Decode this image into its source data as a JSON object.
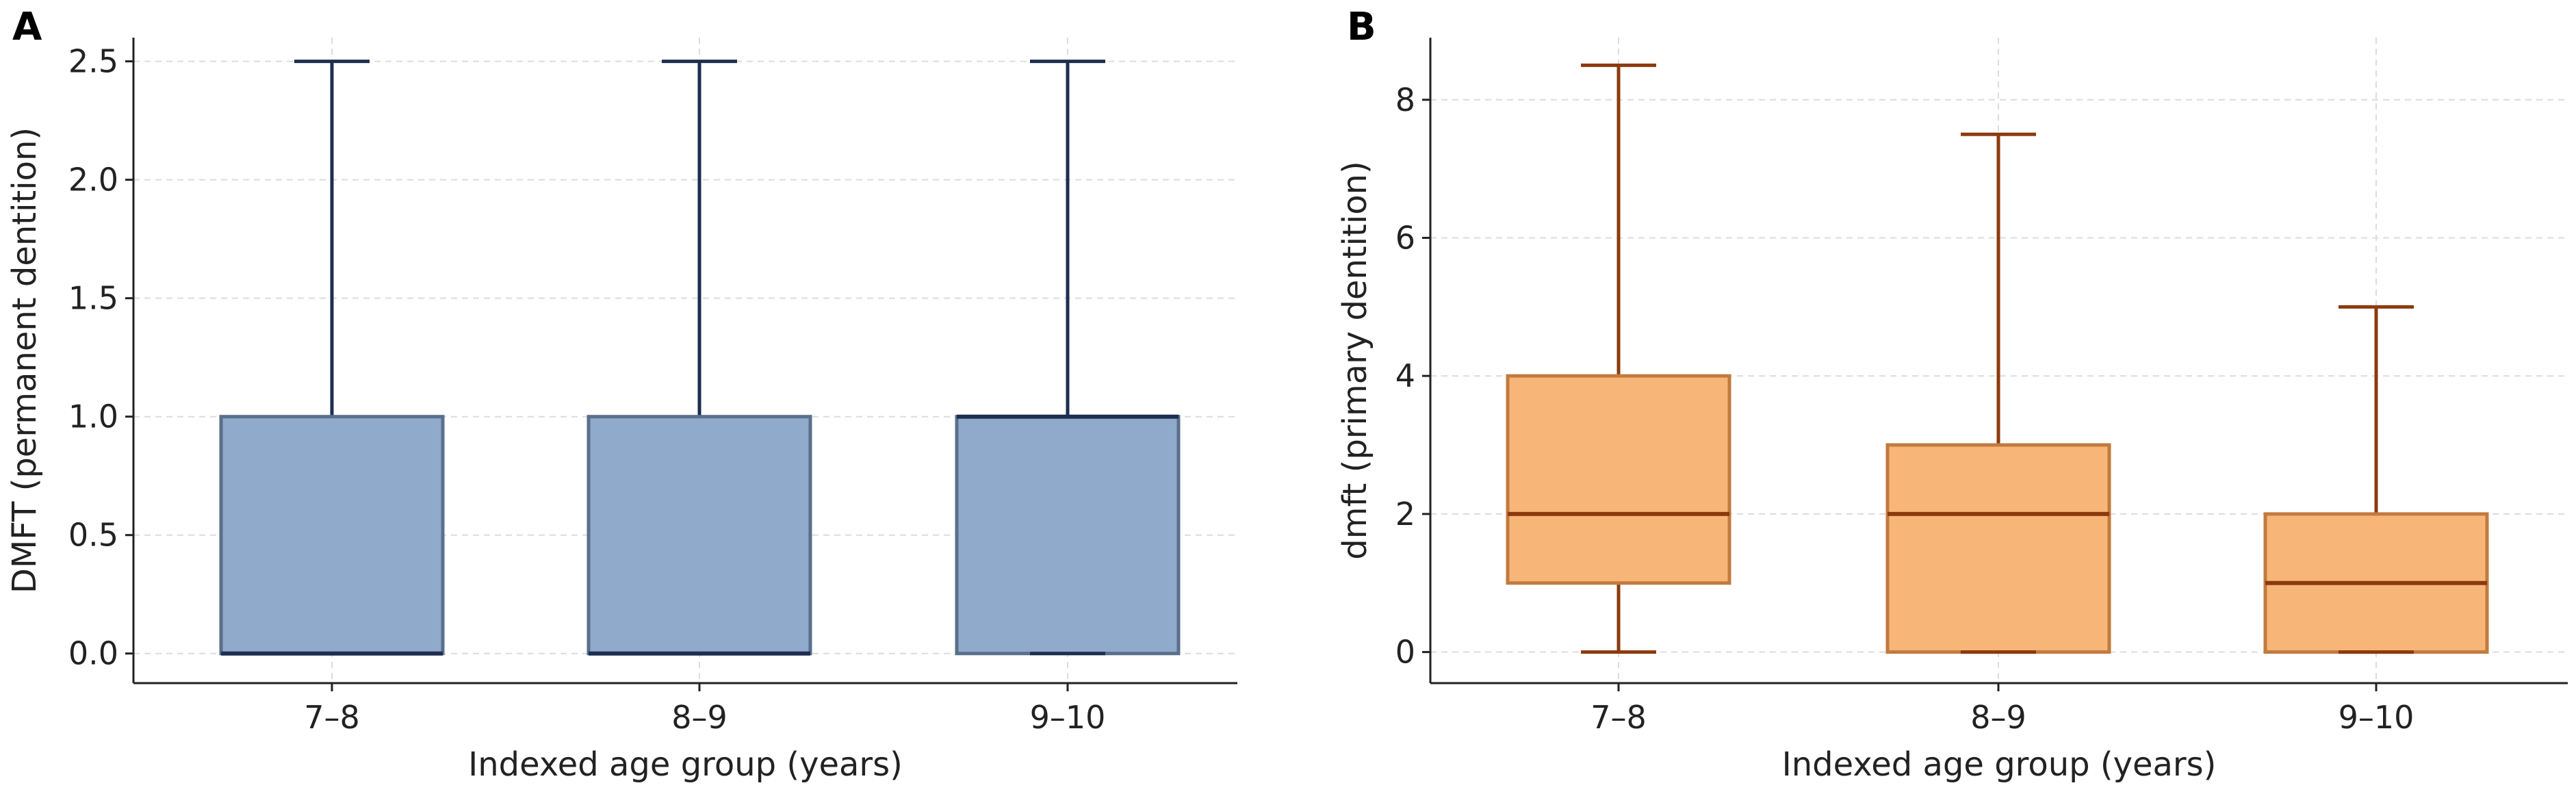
{
  "chart_data": [
    {
      "type": "boxplot",
      "panel_label": "A",
      "title": "",
      "xlabel": "Indexed age group (years)",
      "ylabel": "DMFT (permanent dentition)",
      "ylim": [
        -0.125,
        2.6
      ],
      "yticks": [
        0.0,
        0.5,
        1.0,
        1.5,
        2.0,
        2.5
      ],
      "ytick_labels": [
        "0.0",
        "0.5",
        "1.0",
        "1.5",
        "2.0",
        "2.5"
      ],
      "grid": true,
      "categories": [
        "7–8",
        "8–9",
        "9–10"
      ],
      "boxes": [
        {
          "whisker_low": 0,
          "q1": 0,
          "median": 0,
          "q3": 1,
          "whisker_high": 2.5
        },
        {
          "whisker_low": 0,
          "q1": 0,
          "median": 0,
          "q3": 1,
          "whisker_high": 2.5
        },
        {
          "whisker_low": 0,
          "q1": 0,
          "median": 1,
          "q3": 1,
          "whisker_high": 2.5
        }
      ],
      "colors": {
        "box_fill": "#8FAACB",
        "box_edge": "#5A6F8A",
        "line": "#1E2E4F"
      }
    },
    {
      "type": "boxplot",
      "panel_label": "B",
      "title": "",
      "xlabel": "Indexed age group (years)",
      "ylabel": "dmft (primary dentition)",
      "ylim": [
        -0.45,
        8.9
      ],
      "yticks": [
        0,
        2,
        4,
        6,
        8
      ],
      "ytick_labels": [
        "0",
        "2",
        "4",
        "6",
        "8"
      ],
      "grid": true,
      "categories": [
        "7–8",
        "8–9",
        "9–10"
      ],
      "boxes": [
        {
          "whisker_low": 0,
          "q1": 1,
          "median": 2,
          "q3": 4,
          "whisker_high": 8.5
        },
        {
          "whisker_low": 0,
          "q1": 0,
          "median": 2,
          "q3": 3,
          "whisker_high": 7.5
        },
        {
          "whisker_low": 0,
          "q1": 0,
          "median": 1,
          "q3": 2,
          "whisker_high": 5
        }
      ],
      "colors": {
        "box_fill": "#F7B677",
        "box_edge": "#C27A3E",
        "line": "#8B3A0E"
      }
    }
  ]
}
